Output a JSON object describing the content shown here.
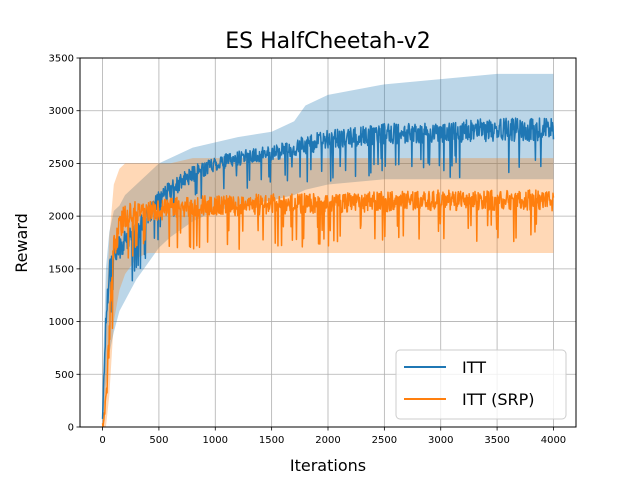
{
  "chart_data": {
    "type": "line",
    "title": "ES HalfCheetah-v2",
    "xlabel": "Iterations",
    "ylabel": "Reward",
    "xlim": [
      -200,
      4200
    ],
    "ylim": [
      0,
      3500
    ],
    "xticks": [
      0,
      500,
      1000,
      1500,
      2000,
      2500,
      3000,
      3500,
      4000
    ],
    "yticks": [
      0,
      500,
      1000,
      1500,
      2000,
      2500,
      3000,
      3500
    ],
    "grid": true,
    "legend_position": "bottom-right",
    "series": [
      {
        "name": "ITT",
        "color": "#1f77b4",
        "x": [
          0,
          30,
          60,
          100,
          150,
          200,
          300,
          400,
          500,
          600,
          800,
          1000,
          1200,
          1500,
          1700,
          1800,
          2000,
          2500,
          3000,
          3500,
          4000
        ],
        "mean": [
          100,
          1000,
          1500,
          1650,
          1700,
          1750,
          1850,
          2000,
          2150,
          2250,
          2400,
          2500,
          2550,
          2600,
          2640,
          2680,
          2720,
          2780,
          2800,
          2820,
          2820
        ],
        "band_low": [
          0,
          400,
          700,
          900,
          1100,
          1200,
          1400,
          1550,
          1700,
          1800,
          1950,
          2050,
          2100,
          2150,
          2200,
          2250,
          2300,
          2350,
          2350,
          2350,
          2350
        ],
        "band_high": [
          400,
          1500,
          1850,
          2050,
          2100,
          2200,
          2300,
          2400,
          2500,
          2550,
          2650,
          2700,
          2750,
          2800,
          2900,
          3050,
          3150,
          3250,
          3300,
          3350,
          3350
        ]
      },
      {
        "name": "ITT (SRP)",
        "color": "#ff7f0e",
        "x": [
          0,
          30,
          60,
          100,
          150,
          200,
          300,
          400,
          500,
          600,
          800,
          1000,
          1200,
          1500,
          1700,
          2000,
          2500,
          3000,
          3500,
          4000
        ],
        "mean": [
          50,
          200,
          900,
          1700,
          1900,
          2000,
          2050,
          2050,
          2050,
          2080,
          2100,
          2100,
          2100,
          2120,
          2120,
          2130,
          2140,
          2150,
          2150,
          2150
        ],
        "band_low": [
          0,
          0,
          300,
          1000,
          1300,
          1450,
          1600,
          1650,
          1650,
          1650,
          1650,
          1650,
          1650,
          1650,
          1650,
          1650,
          1650,
          1650,
          1650,
          1650
        ],
        "band_high": [
          300,
          1000,
          1800,
          2300,
          2450,
          2500,
          2500,
          2500,
          2500,
          2500,
          2550,
          2550,
          2550,
          2550,
          2550,
          2550,
          2550,
          2550,
          2550,
          2550
        ]
      }
    ]
  }
}
